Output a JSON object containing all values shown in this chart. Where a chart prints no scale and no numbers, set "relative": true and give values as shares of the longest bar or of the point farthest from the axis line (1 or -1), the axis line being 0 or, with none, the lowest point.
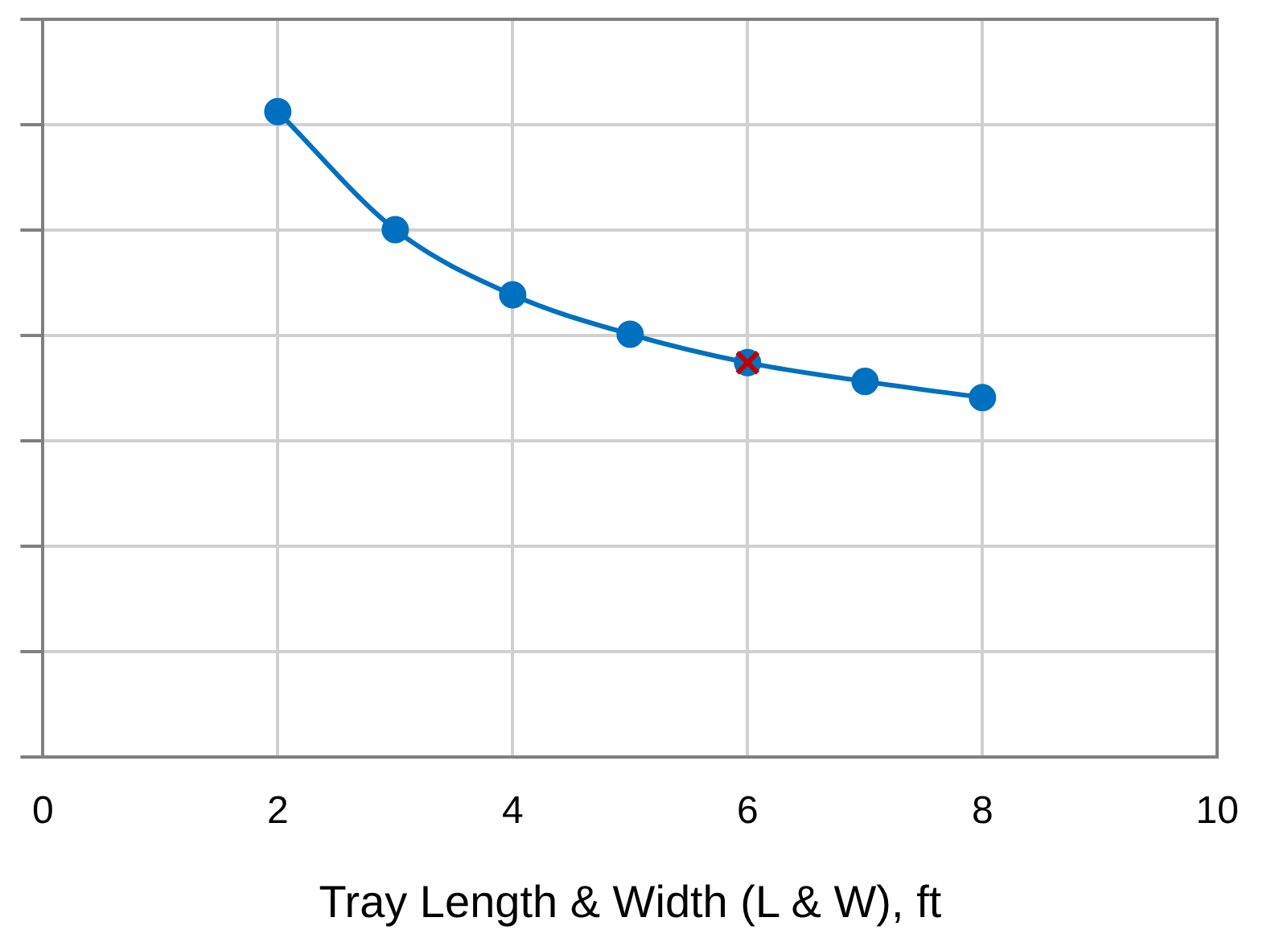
{
  "chart_data": {
    "type": "line",
    "xlabel": "Tray Length & Width (L & W), ft",
    "relative": true,
    "xlim": [
      0,
      10
    ],
    "xticks": [
      0,
      2,
      4,
      6,
      8,
      10
    ],
    "grid": true,
    "legend": false,
    "series": [
      {
        "color": "#0070c0",
        "marker": "circle",
        "line_style": "solid",
        "x": [
          2,
          3,
          4,
          5,
          6,
          7,
          8
        ],
        "values": [
          1,
          0.817,
          0.716,
          0.655,
          0.611,
          0.582,
          0.557
        ]
      },
      {
        "type": "scatter",
        "color": "#c00000",
        "marker": "cross",
        "x": [
          6
        ],
        "values": [
          0.611
        ]
      }
    ]
  }
}
